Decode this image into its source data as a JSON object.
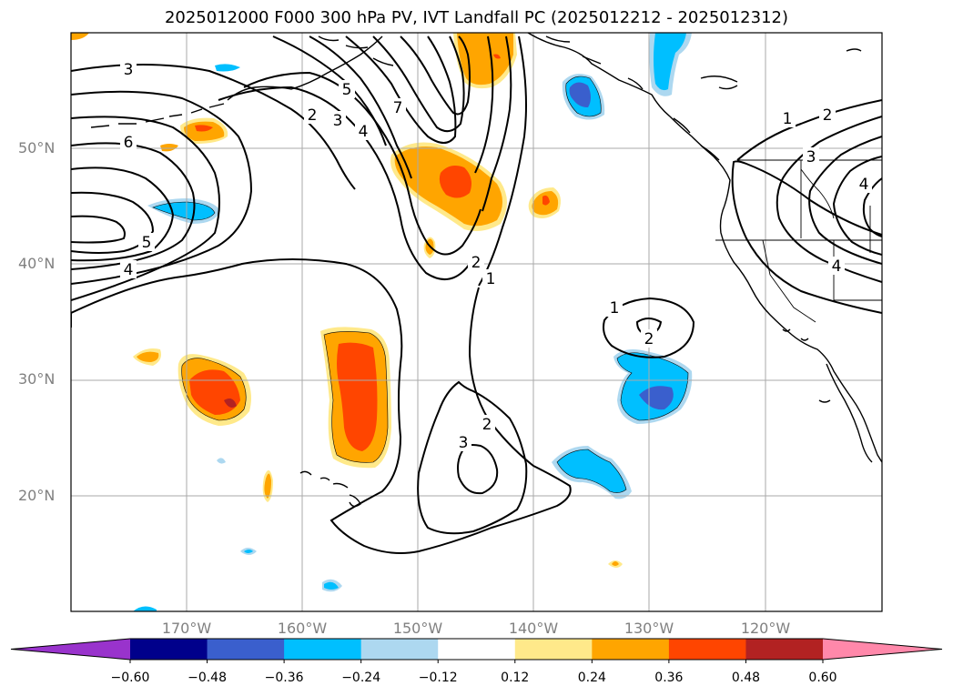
{
  "title": "2025012000 F000 300 hPa PV, IVT Landfall PC (2025012212 - 2025012312)",
  "lat_labels": [
    "50°N",
    "40°N",
    "30°N",
    "20°N"
  ],
  "lon_labels": [
    "170°W",
    "160°W",
    "150°W",
    "140°W",
    "130°W",
    "120°W"
  ],
  "colorbar": {
    "ticks": [
      "−0.60",
      "−0.48",
      "−0.36",
      "−0.24",
      "−0.12",
      "0.12",
      "0.24",
      "0.36",
      "0.48",
      "0.60"
    ],
    "colors": [
      "#9933cc",
      "#00008b",
      "#3a5fcd",
      "#00bfff",
      "#add8f0",
      "#ffffff",
      "#ffe98a",
      "#ffa500",
      "#ff4500",
      "#b22222",
      "#ff88aa"
    ]
  },
  "contour_labels": [
    "3",
    "6",
    "5",
    "4",
    "2",
    "3",
    "4",
    "5",
    "7",
    "2",
    "1",
    "1",
    "2",
    "3",
    "2",
    "1",
    "2",
    "3",
    "4",
    "4"
  ],
  "colors": {
    "positive_light": "#ffe98a",
    "positive_mid": "#ffa500",
    "positive_strong": "#ff4500",
    "positive_max": "#b22222",
    "negative_light": "#add8f0",
    "negative_mid": "#00bfff",
    "negative_strong": "#3a5fcd"
  }
}
